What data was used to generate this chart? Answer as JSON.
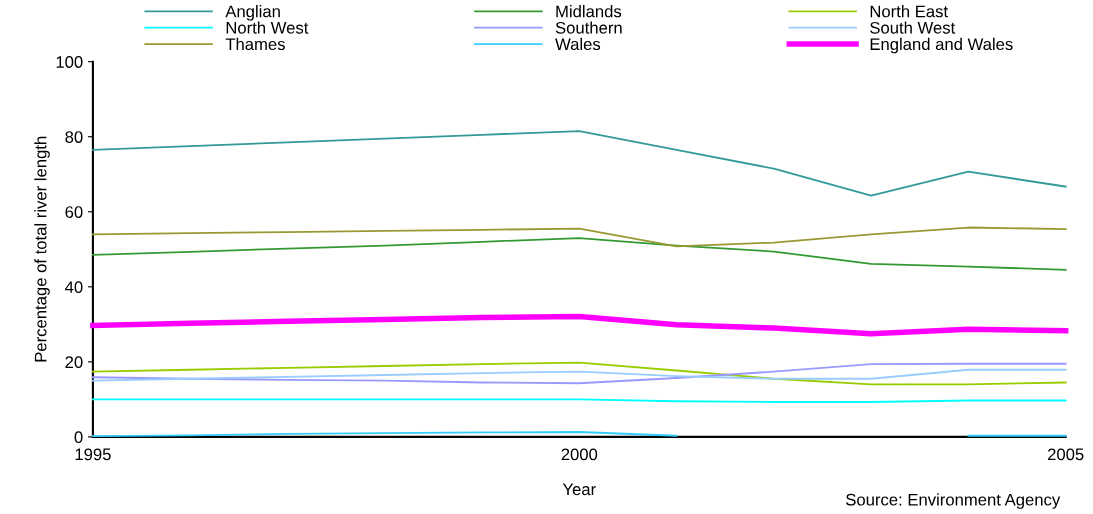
{
  "chart_data": {
    "type": "line",
    "xlabel": "Year",
    "ylabel": "Percentage of total river length",
    "x": [
      1995,
      1996,
      1997,
      1998,
      1999,
      2000,
      2001,
      2002,
      2003,
      2004,
      2005
    ],
    "xlim": [
      1995,
      2005
    ],
    "xticks": [
      1995,
      2000,
      2005
    ],
    "ylim": [
      0,
      100
    ],
    "yticks": [
      0,
      20,
      40,
      60,
      80,
      100
    ],
    "grid": false,
    "legend": "top",
    "marker": "none",
    "line_style": "solid",
    "annotations": [
      "Source: Environment Agency"
    ],
    "series": [
      {
        "name": "Anglian",
        "color": "#339999",
        "values": [
          76.5,
          77.5,
          78.5,
          79.5,
          80.5,
          81.5,
          76.5,
          71.5,
          64.3,
          70.7,
          66.7
        ]
      },
      {
        "name": "Midlands",
        "color": "#339933",
        "values": [
          48.5,
          49.3,
          50.2,
          51,
          52,
          53,
          51,
          49.4,
          46.1,
          45.4,
          44.5
        ]
      },
      {
        "name": "North East",
        "color": "#99cc00",
        "values": [
          17.4,
          17.9,
          18.4,
          18.9,
          19.4,
          19.8,
          17.7,
          15.5,
          14,
          14,
          14.5
        ]
      },
      {
        "name": "North West",
        "color": "#00ffff",
        "values": [
          10,
          10,
          10,
          10,
          10,
          10,
          9.5,
          9.3,
          9.3,
          9.7,
          9.7
        ]
      },
      {
        "name": "Southern",
        "color": "#9999ff",
        "values": [
          15.9,
          15.5,
          15.2,
          15,
          14.5,
          14.3,
          15.7,
          17.4,
          19.4,
          19.5,
          19.5
        ]
      },
      {
        "name": "South West",
        "color": "#99ccff",
        "values": [
          15,
          15.5,
          16,
          16.5,
          17,
          17.4,
          16.2,
          15.5,
          15.5,
          17.9,
          17.9
        ]
      },
      {
        "name": "Thames",
        "color": "#999933",
        "values": [
          54,
          54.3,
          54.6,
          54.9,
          55.2,
          55.5,
          50.8,
          51.8,
          54,
          55.8,
          55.4
        ]
      },
      {
        "name": "Wales",
        "color": "#33ccff",
        "values": [
          0.2,
          0.4,
          0.8,
          1,
          1.2,
          1.3,
          0.3,
          null,
          null,
          0.3,
          0.3
        ]
      },
      {
        "name": "England and Wales",
        "color": "#ff00ff",
        "values": [
          29.7,
          30.3,
          30.8,
          31.3,
          31.8,
          32.1,
          29.9,
          29,
          27.5,
          28.7,
          28.3
        ]
      }
    ]
  }
}
